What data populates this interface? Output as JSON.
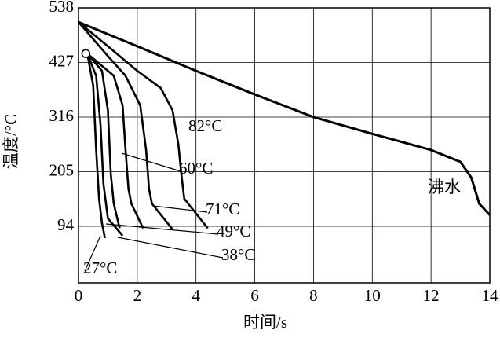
{
  "chart_data": {
    "type": "line",
    "x_label": "时间/s",
    "y_label": "温度/°C",
    "xlim": [
      0,
      14
    ],
    "xticks": [
      0,
      2,
      4,
      6,
      8,
      10,
      12,
      14
    ],
    "ylim": [
      -21,
      538
    ],
    "yticks": [
      94,
      205,
      316,
      427,
      538
    ],
    "grid": true,
    "series": [
      {
        "name": "沸水",
        "color": "#000000",
        "x": [
          0,
          2,
          4,
          6,
          8,
          10,
          12,
          13,
          13.37,
          13.64,
          14
        ],
        "values": [
          509,
          460,
          410,
          362,
          316,
          282,
          249,
          225,
          193,
          140,
          117
        ]
      },
      {
        "name": "82°C",
        "color": "#000000",
        "x": [
          0,
          1,
          2,
          2.8,
          3.2,
          3.4,
          3.5,
          3.6,
          4.4
        ],
        "values": [
          509,
          460,
          410,
          375,
          330,
          260,
          200,
          150,
          90
        ]
      },
      {
        "name": "71°C",
        "color": "#000000",
        "x": [
          0,
          1,
          1.6,
          2.1,
          2.3,
          2.4,
          2.5,
          3.2
        ],
        "values": [
          509,
          440,
          400,
          340,
          250,
          170,
          140,
          88
        ]
      },
      {
        "name": "60°C",
        "color": "#000000",
        "x": [
          0.3,
          1.2,
          1.5,
          1.6,
          1.7,
          1.8,
          2.2
        ],
        "values": [
          445,
          400,
          340,
          250,
          170,
          140,
          90
        ]
      },
      {
        "name": "49°C",
        "color": "#000000",
        "x": [
          0.3,
          0.8,
          1.0,
          1.1,
          1.2,
          1.4
        ],
        "values": [
          445,
          410,
          330,
          200,
          140,
          90
        ]
      },
      {
        "name": "38°C",
        "color": "#000000",
        "x": [
          0.3,
          0.6,
          0.75,
          0.85,
          1.0,
          1.5
        ],
        "values": [
          445,
          400,
          300,
          180,
          110,
          75
        ]
      },
      {
        "name": "27°C",
        "color": "#000000",
        "x": [
          0.3,
          0.5,
          0.6,
          0.7,
          0.8,
          0.9
        ],
        "values": [
          445,
          380,
          250,
          150,
          100,
          70
        ]
      }
    ]
  }
}
